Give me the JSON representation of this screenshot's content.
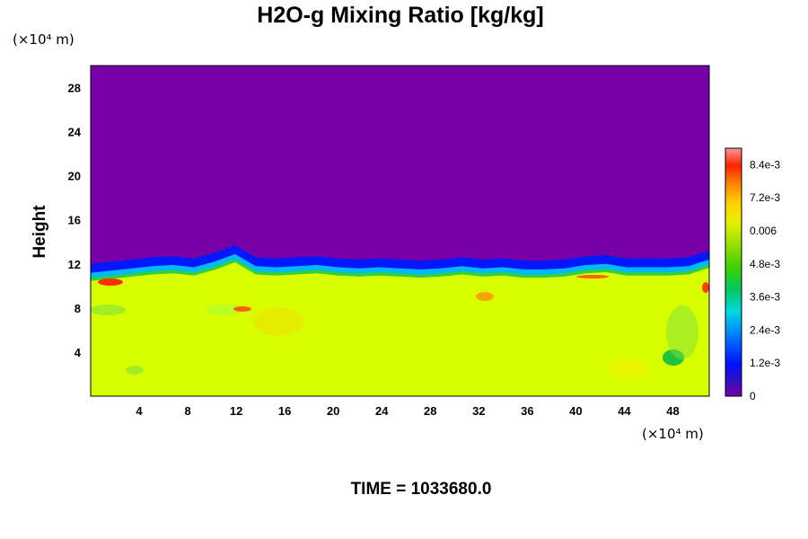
{
  "chart_data": {
    "type": "heatmap",
    "title": "H2O-g Mixing Ratio [kg/kg]",
    "ylabel": "Height",
    "x_unit_label": "(×10⁴ m)",
    "y_unit_label": "(×10⁴ m)",
    "x_range": [
      0,
      51
    ],
    "y_range": [
      0,
      30
    ],
    "x_ticks": [
      "4",
      "8",
      "12",
      "16",
      "20",
      "24",
      "28",
      "32",
      "36",
      "40",
      "44",
      "48"
    ],
    "y_ticks": [
      "4",
      "8",
      "12",
      "16",
      "20",
      "24",
      "28"
    ],
    "colorbar": {
      "range": [
        0,
        0.009
      ],
      "tick_labels": [
        "0",
        "1.2e-3",
        "2.4e-3",
        "3.6e-3",
        "4.8e-3",
        "0.006",
        "7.2e-3",
        "8.4e-3"
      ],
      "tick_values": [
        0,
        0.0012,
        0.0024,
        0.0036,
        0.0048,
        0.006,
        0.0072,
        0.0084
      ]
    },
    "field_summary": {
      "lower_layer_value": 0.0065,
      "upper_layer_value": 0,
      "interface_height": [
        10.6,
        10.8,
        11.0,
        11.2,
        11.3,
        11.1,
        11.6,
        12.3,
        11.2,
        11.1,
        11.2,
        11.3,
        11.1,
        11.0,
        11.1,
        11.0,
        10.9,
        11.0,
        11.2,
        11.0,
        11.1,
        10.9,
        10.9,
        11.0,
        11.3,
        11.4,
        11.1,
        11.1,
        11.1,
        11.2,
        11.8
      ]
    }
  },
  "footer": {
    "time_label": "TIME = 1033680.0"
  }
}
